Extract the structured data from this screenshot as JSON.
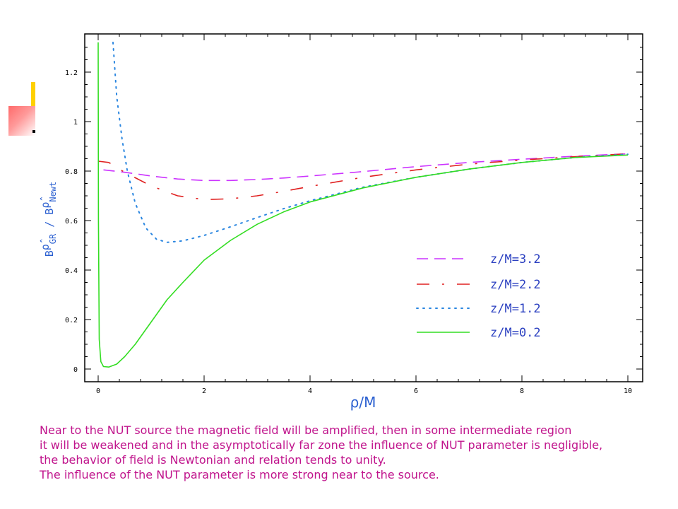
{
  "chart_data": {
    "type": "line",
    "xlabel": "ρ/M",
    "ylabel": "B ρ̂ GR / B ρ̂ Newt",
    "ylabel_parts": {
      "b1": "B",
      "hat1": "ρ̂",
      "sub1": "GR",
      "slash": " / ",
      "b2": "B",
      "hat2": "ρ̂",
      "sub2": "Newt"
    },
    "xlim": [
      0,
      10
    ],
    "ylim": [
      0,
      1.3
    ],
    "x_ticks": [
      0,
      2,
      4,
      6,
      8,
      10
    ],
    "y_ticks": [
      0,
      0.2,
      0.4,
      0.6,
      0.8,
      1,
      1.2
    ],
    "x_tick_labels": [
      "0",
      "2",
      "4",
      "6",
      "8",
      "10"
    ],
    "y_tick_labels": [
      "0",
      "0.2",
      "0.4",
      "0.6",
      "0.8",
      "1",
      "1.2"
    ],
    "legend_position": "bottom-right",
    "grid": false,
    "series": [
      {
        "name": "z/M=3.2",
        "color": "#cc33ff",
        "style": "long-dash",
        "x": [
          0.1,
          0.5,
          1.0,
          1.5,
          2.0,
          2.5,
          3.0,
          3.5,
          4.0,
          5.0,
          6.0,
          7.0,
          8.0,
          9.0,
          10.0
        ],
        "y": [
          0.805,
          0.795,
          0.78,
          0.768,
          0.762,
          0.762,
          0.766,
          0.772,
          0.78,
          0.798,
          0.818,
          0.835,
          0.848,
          0.86,
          0.87
        ]
      },
      {
        "name": "z/M=2.2",
        "color": "#e02020",
        "style": "dash-dot",
        "x": [
          0.0,
          0.2,
          0.5,
          1.0,
          1.5,
          2.0,
          2.5,
          3.0,
          3.5,
          4.0,
          5.0,
          6.0,
          7.0,
          8.0,
          9.0,
          10.0
        ],
        "y": [
          0.84,
          0.835,
          0.795,
          0.74,
          0.7,
          0.685,
          0.688,
          0.7,
          0.718,
          0.738,
          0.775,
          0.805,
          0.828,
          0.845,
          0.858,
          0.87
        ]
      },
      {
        "name": "z/M=1.2",
        "color": "#2a86e0",
        "style": "dotted",
        "x": [
          0.28,
          0.35,
          0.45,
          0.55,
          0.7,
          0.9,
          1.1,
          1.3,
          1.6,
          2.0,
          2.5,
          3.0,
          3.5,
          4.0,
          5.0,
          6.0,
          7.0,
          8.0,
          9.0,
          10.0
        ],
        "y": [
          1.32,
          1.1,
          0.93,
          0.8,
          0.67,
          0.57,
          0.525,
          0.512,
          0.518,
          0.54,
          0.575,
          0.612,
          0.648,
          0.68,
          0.735,
          0.775,
          0.808,
          0.835,
          0.855,
          0.868
        ]
      },
      {
        "name": "z/M=0.2",
        "color": "#33dd22",
        "style": "solid",
        "x": [
          0.0,
          0.005,
          0.02,
          0.05,
          0.1,
          0.2,
          0.35,
          0.5,
          0.7,
          1.0,
          1.3,
          1.6,
          2.0,
          2.5,
          3.0,
          3.5,
          4.0,
          5.0,
          6.0,
          7.0,
          8.0,
          9.0,
          10.0
        ],
        "y": [
          1.32,
          0.6,
          0.12,
          0.03,
          0.01,
          0.008,
          0.02,
          0.05,
          0.1,
          0.19,
          0.28,
          0.35,
          0.44,
          0.52,
          0.585,
          0.635,
          0.675,
          0.732,
          0.775,
          0.808,
          0.835,
          0.855,
          0.865
        ]
      }
    ],
    "legend_order": [
      0,
      1,
      2,
      3
    ]
  },
  "caption": {
    "line1": "Near to the NUT source the magnetic field will be amplified, then in some intermediate region",
    "line2": "it will be weakened and in the asymptotically far zone the influence of NUT parameter is negligible,",
    "line3": "the behavior of field is Newtonian and relation tends to unity.",
    "line4": "The influence of the NUT parameter is more strong near to the source."
  },
  "colors": {
    "caption": "#c0148c",
    "axis_labels": "#2a5fd0",
    "frame": "#000000"
  }
}
